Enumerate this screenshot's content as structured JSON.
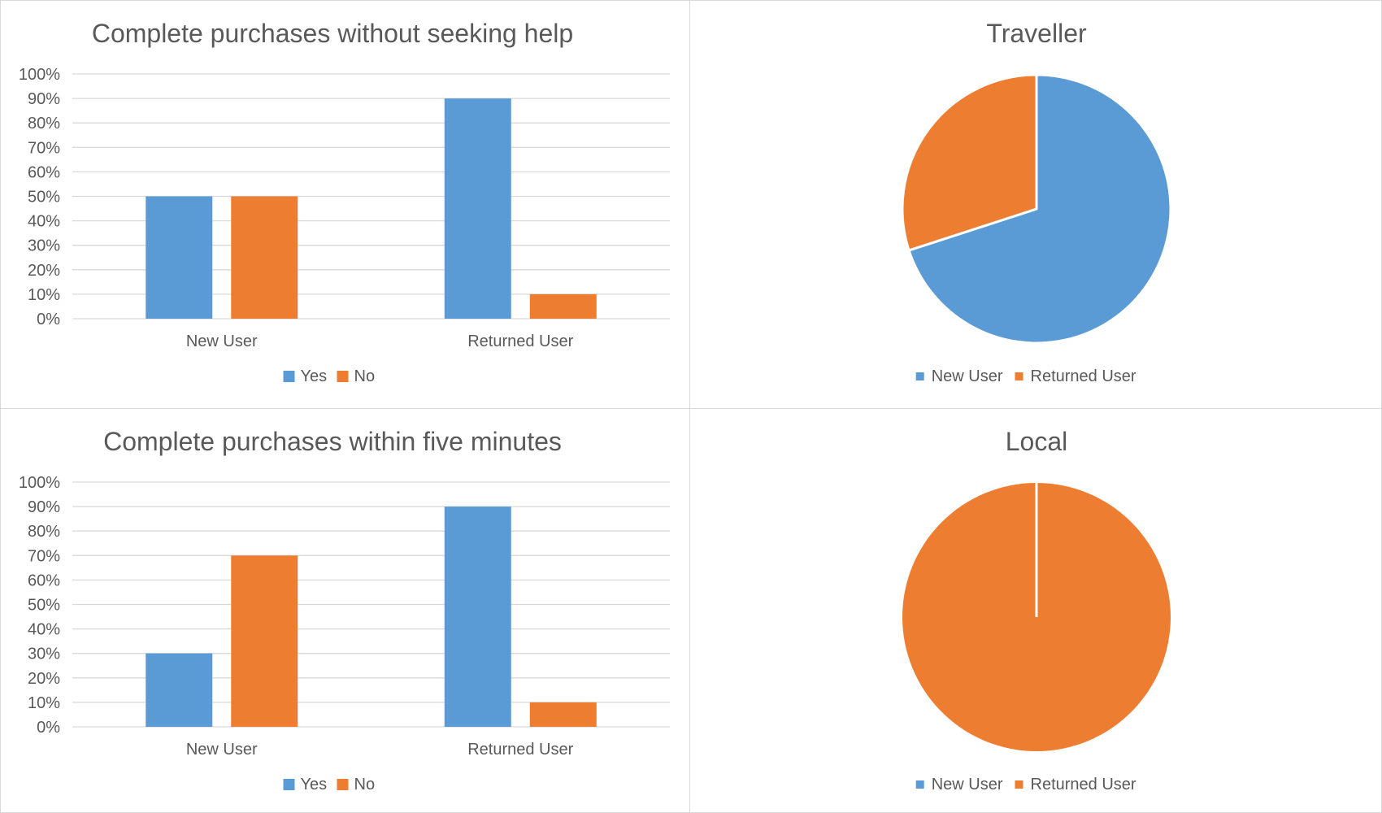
{
  "colors": {
    "blue": "#5b9bd5",
    "orange": "#ed7d31",
    "grid": "#d9d9d9",
    "text": "#595959"
  },
  "chart_data": [
    {
      "type": "bar",
      "title": "Complete purchases without seeking help",
      "categories": [
        "New User",
        "Returned User"
      ],
      "series": [
        {
          "name": "Yes",
          "values": [
            50,
            90
          ]
        },
        {
          "name": "No",
          "values": [
            50,
            10
          ]
        }
      ],
      "ylim": [
        0,
        100
      ],
      "yticks": [
        "0%",
        "10%",
        "20%",
        "30%",
        "40%",
        "50%",
        "60%",
        "70%",
        "80%",
        "90%",
        "100%"
      ],
      "xlabel": "",
      "ylabel": "",
      "grid": true,
      "legend": "bottom"
    },
    {
      "type": "pie",
      "title": "Traveller",
      "labels": [
        "New User",
        "Returned User"
      ],
      "values": [
        70,
        30
      ],
      "legend": "bottom"
    },
    {
      "type": "bar",
      "title": "Complete purchases within five minutes",
      "categories": [
        "New User",
        "Returned User"
      ],
      "series": [
        {
          "name": "Yes",
          "values": [
            30,
            90
          ]
        },
        {
          "name": "No",
          "values": [
            70,
            10
          ]
        }
      ],
      "ylim": [
        0,
        100
      ],
      "yticks": [
        "0%",
        "10%",
        "20%",
        "30%",
        "40%",
        "50%",
        "60%",
        "70%",
        "80%",
        "90%",
        "100%"
      ],
      "xlabel": "",
      "ylabel": "",
      "grid": true,
      "legend": "bottom"
    },
    {
      "type": "pie",
      "title": "Local",
      "labels": [
        "New User",
        "Returned User"
      ],
      "values": [
        0,
        100
      ],
      "legend": "bottom"
    }
  ]
}
